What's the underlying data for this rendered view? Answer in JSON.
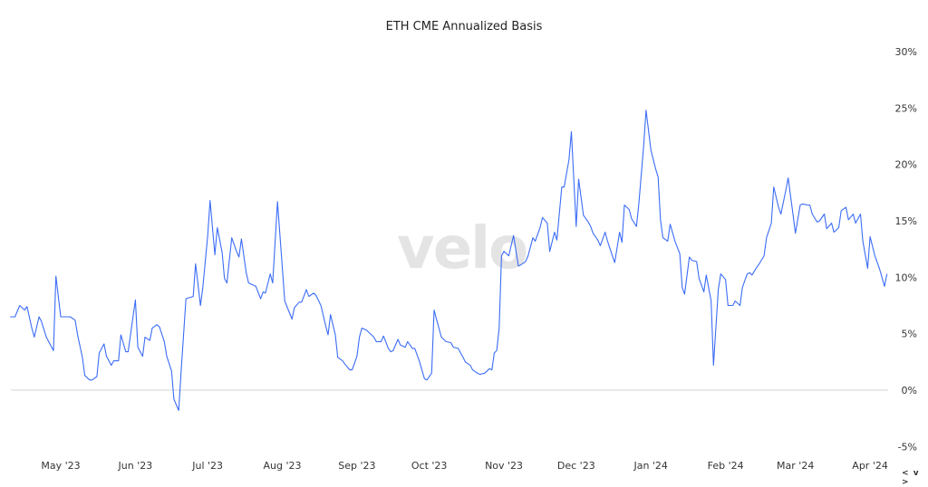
{
  "chart_data": {
    "type": "line",
    "title": "ETH CME Annualized Basis",
    "watermark": "velo",
    "line_color": "#3b6cf6",
    "zero_line_color": "#d6d6d6",
    "ylim": [
      -5,
      30
    ],
    "y_ticks": [
      30,
      25,
      20,
      15,
      10,
      5,
      0,
      -5
    ],
    "y_tick_labels": [
      "30%",
      "25%",
      "20%",
      "15%",
      "10%",
      "5%",
      "0%",
      "-5%"
    ],
    "y_axis_position": "right",
    "grid": false,
    "x_ticks": [
      "2023-05-01",
      "2023-06-01",
      "2023-07-01",
      "2023-08-01",
      "2023-09-01",
      "2023-10-01",
      "2023-11-01",
      "2023-12-01",
      "2024-01-01",
      "2024-02-01",
      "2024-03-01",
      "2024-04-01"
    ],
    "x_tick_labels": [
      "May '23",
      "Jun '23",
      "Jul '23",
      "Aug '23",
      "Sep '23",
      "Oct '23",
      "Nov '23",
      "Dec '23",
      "Jan '24",
      "Feb '24",
      "Mar '24",
      "Apr '24"
    ],
    "points": [
      [
        "2023-04-10",
        6.5
      ],
      [
        "2023-04-12",
        6.5
      ],
      [
        "2023-04-14",
        7.5
      ],
      [
        "2023-04-16",
        7.1
      ],
      [
        "2023-04-17",
        7.4
      ],
      [
        "2023-04-19",
        5.5
      ],
      [
        "2023-04-20",
        4.7
      ],
      [
        "2023-04-22",
        6.5
      ],
      [
        "2023-04-23",
        6.1
      ],
      [
        "2023-04-25",
        4.7
      ],
      [
        "2023-04-26",
        4.3
      ],
      [
        "2023-04-28",
        3.5
      ],
      [
        "2023-04-29",
        10.1
      ],
      [
        "2023-05-01",
        6.5
      ],
      [
        "2023-05-05",
        6.5
      ],
      [
        "2023-05-07",
        6.2
      ],
      [
        "2023-05-08",
        4.9
      ],
      [
        "2023-05-10",
        2.9
      ],
      [
        "2023-05-11",
        1.3
      ],
      [
        "2023-05-13",
        0.9
      ],
      [
        "2023-05-14",
        0.9
      ],
      [
        "2023-05-16",
        1.2
      ],
      [
        "2023-05-17",
        3.3
      ],
      [
        "2023-05-19",
        4.1
      ],
      [
        "2023-05-20",
        3.0
      ],
      [
        "2023-05-22",
        2.2
      ],
      [
        "2023-05-23",
        2.6
      ],
      [
        "2023-05-25",
        2.6
      ],
      [
        "2023-05-26",
        4.9
      ],
      [
        "2023-05-28",
        3.4
      ],
      [
        "2023-05-29",
        3.4
      ],
      [
        "2023-06-01",
        8.0
      ],
      [
        "2023-06-02",
        3.8
      ],
      [
        "2023-06-04",
        3.0
      ],
      [
        "2023-06-05",
        4.7
      ],
      [
        "2023-06-07",
        4.4
      ],
      [
        "2023-06-08",
        5.5
      ],
      [
        "2023-06-10",
        5.8
      ],
      [
        "2023-06-11",
        5.6
      ],
      [
        "2023-06-13",
        4.3
      ],
      [
        "2023-06-14",
        3.0
      ],
      [
        "2023-06-16",
        1.7
      ],
      [
        "2023-06-17",
        -0.8
      ],
      [
        "2023-06-19",
        -1.8
      ],
      [
        "2023-06-20",
        1.7
      ],
      [
        "2023-06-22",
        8.1
      ],
      [
        "2023-06-25",
        8.3
      ],
      [
        "2023-06-26",
        11.2
      ],
      [
        "2023-06-28",
        7.5
      ],
      [
        "2023-06-29",
        9.1
      ],
      [
        "2023-07-01",
        13.6
      ],
      [
        "2023-07-02",
        16.8
      ],
      [
        "2023-07-04",
        12.0
      ],
      [
        "2023-07-05",
        14.4
      ],
      [
        "2023-07-07",
        12.2
      ],
      [
        "2023-07-08",
        9.9
      ],
      [
        "2023-07-09",
        9.5
      ],
      [
        "2023-07-11",
        13.5
      ],
      [
        "2023-07-13",
        12.3
      ],
      [
        "2023-07-14",
        11.8
      ],
      [
        "2023-07-15",
        13.4
      ],
      [
        "2023-07-17",
        10.4
      ],
      [
        "2023-07-18",
        9.5
      ],
      [
        "2023-07-21",
        9.2
      ],
      [
        "2023-07-23",
        8.1
      ],
      [
        "2023-07-24",
        8.7
      ],
      [
        "2023-07-25",
        8.6
      ],
      [
        "2023-07-27",
        10.3
      ],
      [
        "2023-07-28",
        9.5
      ],
      [
        "2023-07-30",
        16.7
      ],
      [
        "2023-08-02",
        7.9
      ],
      [
        "2023-08-05",
        6.3
      ],
      [
        "2023-08-06",
        7.3
      ],
      [
        "2023-08-08",
        7.8
      ],
      [
        "2023-08-09",
        7.8
      ],
      [
        "2023-08-11",
        8.9
      ],
      [
        "2023-08-12",
        8.3
      ],
      [
        "2023-08-14",
        8.6
      ],
      [
        "2023-08-15",
        8.4
      ],
      [
        "2023-08-17",
        7.5
      ],
      [
        "2023-08-19",
        5.7
      ],
      [
        "2023-08-20",
        4.9
      ],
      [
        "2023-08-21",
        6.7
      ],
      [
        "2023-08-23",
        4.9
      ],
      [
        "2023-08-24",
        2.9
      ],
      [
        "2023-08-26",
        2.6
      ],
      [
        "2023-08-27",
        2.3
      ],
      [
        "2023-08-29",
        1.8
      ],
      [
        "2023-08-30",
        1.8
      ],
      [
        "2023-09-01",
        3.0
      ],
      [
        "2023-09-02",
        4.7
      ],
      [
        "2023-09-03",
        5.5
      ],
      [
        "2023-09-05",
        5.3
      ],
      [
        "2023-09-06",
        5.1
      ],
      [
        "2023-09-08",
        4.7
      ],
      [
        "2023-09-09",
        4.3
      ],
      [
        "2023-09-11",
        4.3
      ],
      [
        "2023-09-12",
        4.8
      ],
      [
        "2023-09-14",
        3.7
      ],
      [
        "2023-09-15",
        3.4
      ],
      [
        "2023-09-16",
        3.5
      ],
      [
        "2023-09-18",
        4.5
      ],
      [
        "2023-09-19",
        4.0
      ],
      [
        "2023-09-21",
        3.8
      ],
      [
        "2023-09-22",
        4.3
      ],
      [
        "2023-09-24",
        3.7
      ],
      [
        "2023-09-25",
        3.7
      ],
      [
        "2023-09-27",
        2.5
      ],
      [
        "2023-09-29",
        1.0
      ],
      [
        "2023-09-30",
        0.9
      ],
      [
        "2023-10-02",
        1.5
      ],
      [
        "2023-10-03",
        7.1
      ],
      [
        "2023-10-04",
        6.3
      ],
      [
        "2023-10-06",
        4.7
      ],
      [
        "2023-10-08",
        4.3
      ],
      [
        "2023-10-10",
        4.2
      ],
      [
        "2023-10-11",
        3.8
      ],
      [
        "2023-10-13",
        3.7
      ],
      [
        "2023-10-15",
        2.9
      ],
      [
        "2023-10-16",
        2.5
      ],
      [
        "2023-10-18",
        2.2
      ],
      [
        "2023-10-19",
        1.8
      ],
      [
        "2023-10-21",
        1.5
      ],
      [
        "2023-10-22",
        1.4
      ],
      [
        "2023-10-24",
        1.5
      ],
      [
        "2023-10-26",
        1.9
      ],
      [
        "2023-10-27",
        1.8
      ],
      [
        "2023-10-28",
        3.3
      ],
      [
        "2023-10-29",
        3.5
      ],
      [
        "2023-10-30",
        5.5
      ],
      [
        "2023-10-31",
        11.9
      ],
      [
        "2023-11-01",
        12.3
      ],
      [
        "2023-11-03",
        11.9
      ],
      [
        "2023-11-04",
        12.8
      ],
      [
        "2023-11-05",
        13.7
      ],
      [
        "2023-11-07",
        11.0
      ],
      [
        "2023-11-08",
        11.1
      ],
      [
        "2023-11-10",
        11.4
      ],
      [
        "2023-11-11",
        11.9
      ],
      [
        "2023-11-13",
        13.5
      ],
      [
        "2023-11-14",
        13.2
      ],
      [
        "2023-11-16",
        14.4
      ],
      [
        "2023-11-17",
        15.3
      ],
      [
        "2023-11-19",
        14.8
      ],
      [
        "2023-11-20",
        12.3
      ],
      [
        "2023-11-22",
        14.0
      ],
      [
        "2023-11-23",
        13.3
      ],
      [
        "2023-11-25",
        18.0
      ],
      [
        "2023-11-26",
        18.0
      ],
      [
        "2023-11-28",
        20.4
      ],
      [
        "2023-11-29",
        22.9
      ],
      [
        "2023-12-01",
        14.5
      ],
      [
        "2023-12-02",
        18.7
      ],
      [
        "2023-12-04",
        15.5
      ],
      [
        "2023-12-06",
        14.9
      ],
      [
        "2023-12-07",
        14.5
      ],
      [
        "2023-12-08",
        13.9
      ],
      [
        "2023-12-10",
        13.3
      ],
      [
        "2023-12-11",
        12.8
      ],
      [
        "2023-12-13",
        14.0
      ],
      [
        "2023-12-14",
        13.2
      ],
      [
        "2023-12-16",
        11.9
      ],
      [
        "2023-12-17",
        11.3
      ],
      [
        "2023-12-19",
        14.0
      ],
      [
        "2023-12-20",
        13.1
      ],
      [
        "2023-12-21",
        16.4
      ],
      [
        "2023-12-23",
        16.0
      ],
      [
        "2023-12-24",
        15.2
      ],
      [
        "2023-12-26",
        14.5
      ],
      [
        "2023-12-27",
        16.5
      ],
      [
        "2023-12-29",
        21.6
      ],
      [
        "2023-12-30",
        24.8
      ],
      [
        "2024-01-01",
        21.3
      ],
      [
        "2024-01-03",
        19.6
      ],
      [
        "2024-01-04",
        18.9
      ],
      [
        "2024-01-05",
        15.1
      ],
      [
        "2024-01-06",
        13.5
      ],
      [
        "2024-01-08",
        13.2
      ],
      [
        "2024-01-09",
        14.7
      ],
      [
        "2024-01-11",
        13.2
      ],
      [
        "2024-01-13",
        12.1
      ],
      [
        "2024-01-14",
        9.1
      ],
      [
        "2024-01-15",
        8.5
      ],
      [
        "2024-01-17",
        11.8
      ],
      [
        "2024-01-18",
        11.5
      ],
      [
        "2024-01-20",
        11.4
      ],
      [
        "2024-01-21",
        9.9
      ],
      [
        "2024-01-23",
        8.7
      ],
      [
        "2024-01-24",
        10.2
      ],
      [
        "2024-01-26",
        7.9
      ],
      [
        "2024-01-27",
        2.2
      ],
      [
        "2024-01-29",
        8.9
      ],
      [
        "2024-01-30",
        10.3
      ],
      [
        "2024-02-01",
        9.8
      ],
      [
        "2024-02-02",
        7.5
      ],
      [
        "2024-02-04",
        7.5
      ],
      [
        "2024-02-05",
        7.9
      ],
      [
        "2024-02-07",
        7.5
      ],
      [
        "2024-02-08",
        9.1
      ],
      [
        "2024-02-10",
        10.3
      ],
      [
        "2024-02-11",
        10.4
      ],
      [
        "2024-02-12",
        10.2
      ],
      [
        "2024-02-14",
        10.9
      ],
      [
        "2024-02-15",
        11.2
      ],
      [
        "2024-02-17",
        11.9
      ],
      [
        "2024-02-18",
        13.5
      ],
      [
        "2024-02-20",
        14.8
      ],
      [
        "2024-02-21",
        18.0
      ],
      [
        "2024-02-23",
        16.2
      ],
      [
        "2024-02-24",
        15.6
      ],
      [
        "2024-02-26",
        17.7
      ],
      [
        "2024-02-27",
        18.8
      ],
      [
        "2024-02-29",
        15.6
      ],
      [
        "2024-03-01",
        13.9
      ],
      [
        "2024-03-03",
        16.4
      ],
      [
        "2024-03-04",
        16.5
      ],
      [
        "2024-03-06",
        16.4
      ],
      [
        "2024-03-07",
        16.4
      ],
      [
        "2024-03-08",
        15.6
      ],
      [
        "2024-03-10",
        14.9
      ],
      [
        "2024-03-11",
        15.0
      ],
      [
        "2024-03-13",
        15.6
      ],
      [
        "2024-03-14",
        14.3
      ],
      [
        "2024-03-16",
        14.8
      ],
      [
        "2024-03-17",
        14.0
      ],
      [
        "2024-03-19",
        14.4
      ],
      [
        "2024-03-20",
        15.9
      ],
      [
        "2024-03-22",
        16.2
      ],
      [
        "2024-03-23",
        15.1
      ],
      [
        "2024-03-25",
        15.6
      ],
      [
        "2024-03-26",
        14.8
      ],
      [
        "2024-03-28",
        15.6
      ],
      [
        "2024-03-29",
        13.2
      ],
      [
        "2024-03-31",
        10.8
      ],
      [
        "2024-04-01",
        13.6
      ],
      [
        "2024-04-03",
        11.9
      ],
      [
        "2024-04-05",
        10.7
      ],
      [
        "2024-04-07",
        9.2
      ],
      [
        "2024-04-08",
        10.3
      ]
    ]
  },
  "nav": {
    "prev": "<",
    "down": "v",
    "next": ">"
  }
}
